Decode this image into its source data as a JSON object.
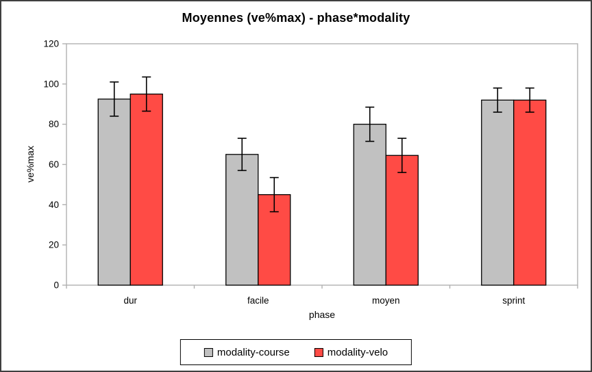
{
  "title": "Moyennes (ve%max) - phase*modality",
  "chart_data": {
    "type": "bar",
    "title": "Moyennes (ve%max) - phase*modality",
    "xlabel": "phase",
    "ylabel": "ve%max",
    "categories": [
      "dur",
      "facile",
      "moyen",
      "sprint"
    ],
    "series": [
      {
        "name": "modality-course",
        "color": "#c1c1c1",
        "values": [
          92.5,
          65,
          80,
          92
        ],
        "errors": [
          8.5,
          8,
          8.5,
          6
        ]
      },
      {
        "name": "modality-velo",
        "color": "#ff4b45",
        "values": [
          95,
          45,
          64.5,
          92
        ],
        "errors": [
          8.5,
          8.5,
          8.5,
          6
        ]
      }
    ],
    "ylim": [
      0,
      120
    ],
    "yticks": [
      0,
      20,
      40,
      60,
      80,
      100,
      120
    ],
    "grid": false,
    "legend_position": "bottom-center",
    "axis_color": "#b0b0b0",
    "bar_border_color": "#000000",
    "error_bar_color": "#000000",
    "frame_border_color": "#3f3f3f",
    "background": "#ffffff"
  }
}
